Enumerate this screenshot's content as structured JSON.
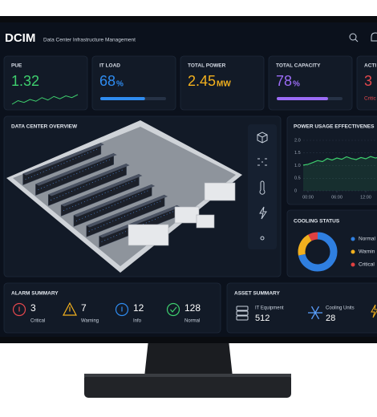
{
  "header": {
    "title": "DCIM",
    "subtitle": "Data Center Infrastructure Management"
  },
  "kpis": [
    {
      "label": "PUE",
      "value": 1.32,
      "color": "#3ecf6e",
      "trend": [
        1.22,
        1.28,
        1.25,
        1.3,
        1.27,
        1.33,
        1.29,
        1.35,
        1.31,
        1.36,
        1.33,
        1.38
      ]
    },
    {
      "label": "IT LOAD",
      "value": 68,
      "unit": "%",
      "color": "#2f8cf0",
      "xlim": [
        0,
        100
      ]
    },
    {
      "label": "TOTAL POWER",
      "value": 2.45,
      "unit": "MW",
      "color": "#f2b01e"
    },
    {
      "label": "TOTAL CAPACITY",
      "value": 78,
      "unit": "%",
      "color": "#9b6cf5",
      "xlim": [
        0,
        100
      ]
    },
    {
      "label": "ACTI",
      "value": 3,
      "sublabel": "Critic",
      "color": "#e5484d"
    }
  ],
  "overview": {
    "title": "DATA CENTER OVERVIEW"
  },
  "pue_chart": {
    "title": "POWER USAGE EFFECTIVENES",
    "color": "#3ecf6e",
    "x": [
      -1,
      0,
      1,
      2,
      3,
      4,
      5,
      6,
      7,
      8,
      9,
      10,
      11,
      12,
      13,
      14,
      15
    ],
    "values": [
      1.02,
      1.05,
      1.12,
      1.2,
      1.16,
      1.28,
      1.22,
      1.3,
      1.25,
      1.35,
      1.28,
      1.24,
      1.32,
      1.27,
      1.36,
      1.3,
      1.34
    ],
    "xlim": [
      -1,
      15
    ],
    "ylim": [
      0,
      2
    ],
    "xticks": [
      {
        "value": 0,
        "label": "00:00"
      },
      {
        "value": 6,
        "label": "06:00"
      },
      {
        "value": 12,
        "label": "12:00"
      }
    ],
    "yticks": [
      0,
      0.5,
      {
        "value": 1,
        "label": "1.0"
      },
      1.5,
      {
        "value": 2,
        "label": "2.0"
      }
    ],
    "grid": true
  },
  "cooling": {
    "title": "COOLING STATUS",
    "segments": [
      {
        "name": "Normal",
        "value": 72,
        "color": "#2f7fe0"
      },
      {
        "name": "Warnin",
        "value": 20,
        "color": "#f2b01e"
      },
      {
        "name": "Critical",
        "value": 8,
        "color": "#e04040"
      }
    ]
  },
  "alarms": {
    "title": "ALARM SUMMARY",
    "items": [
      {
        "count": 3,
        "label": "Critical",
        "color": "#e5484d"
      },
      {
        "count": 7,
        "label": "Warning",
        "color": "#f2b01e"
      },
      {
        "count": 12,
        "label": "Info",
        "color": "#2f8cf0"
      },
      {
        "count": 128,
        "label": "Normal",
        "color": "#3ecf6e"
      }
    ]
  },
  "assets": {
    "title": "ASSET SUMMARY",
    "items": [
      {
        "label": "IT Equipment",
        "count": 512
      },
      {
        "label": "Cooling Units",
        "count": 28
      }
    ]
  }
}
